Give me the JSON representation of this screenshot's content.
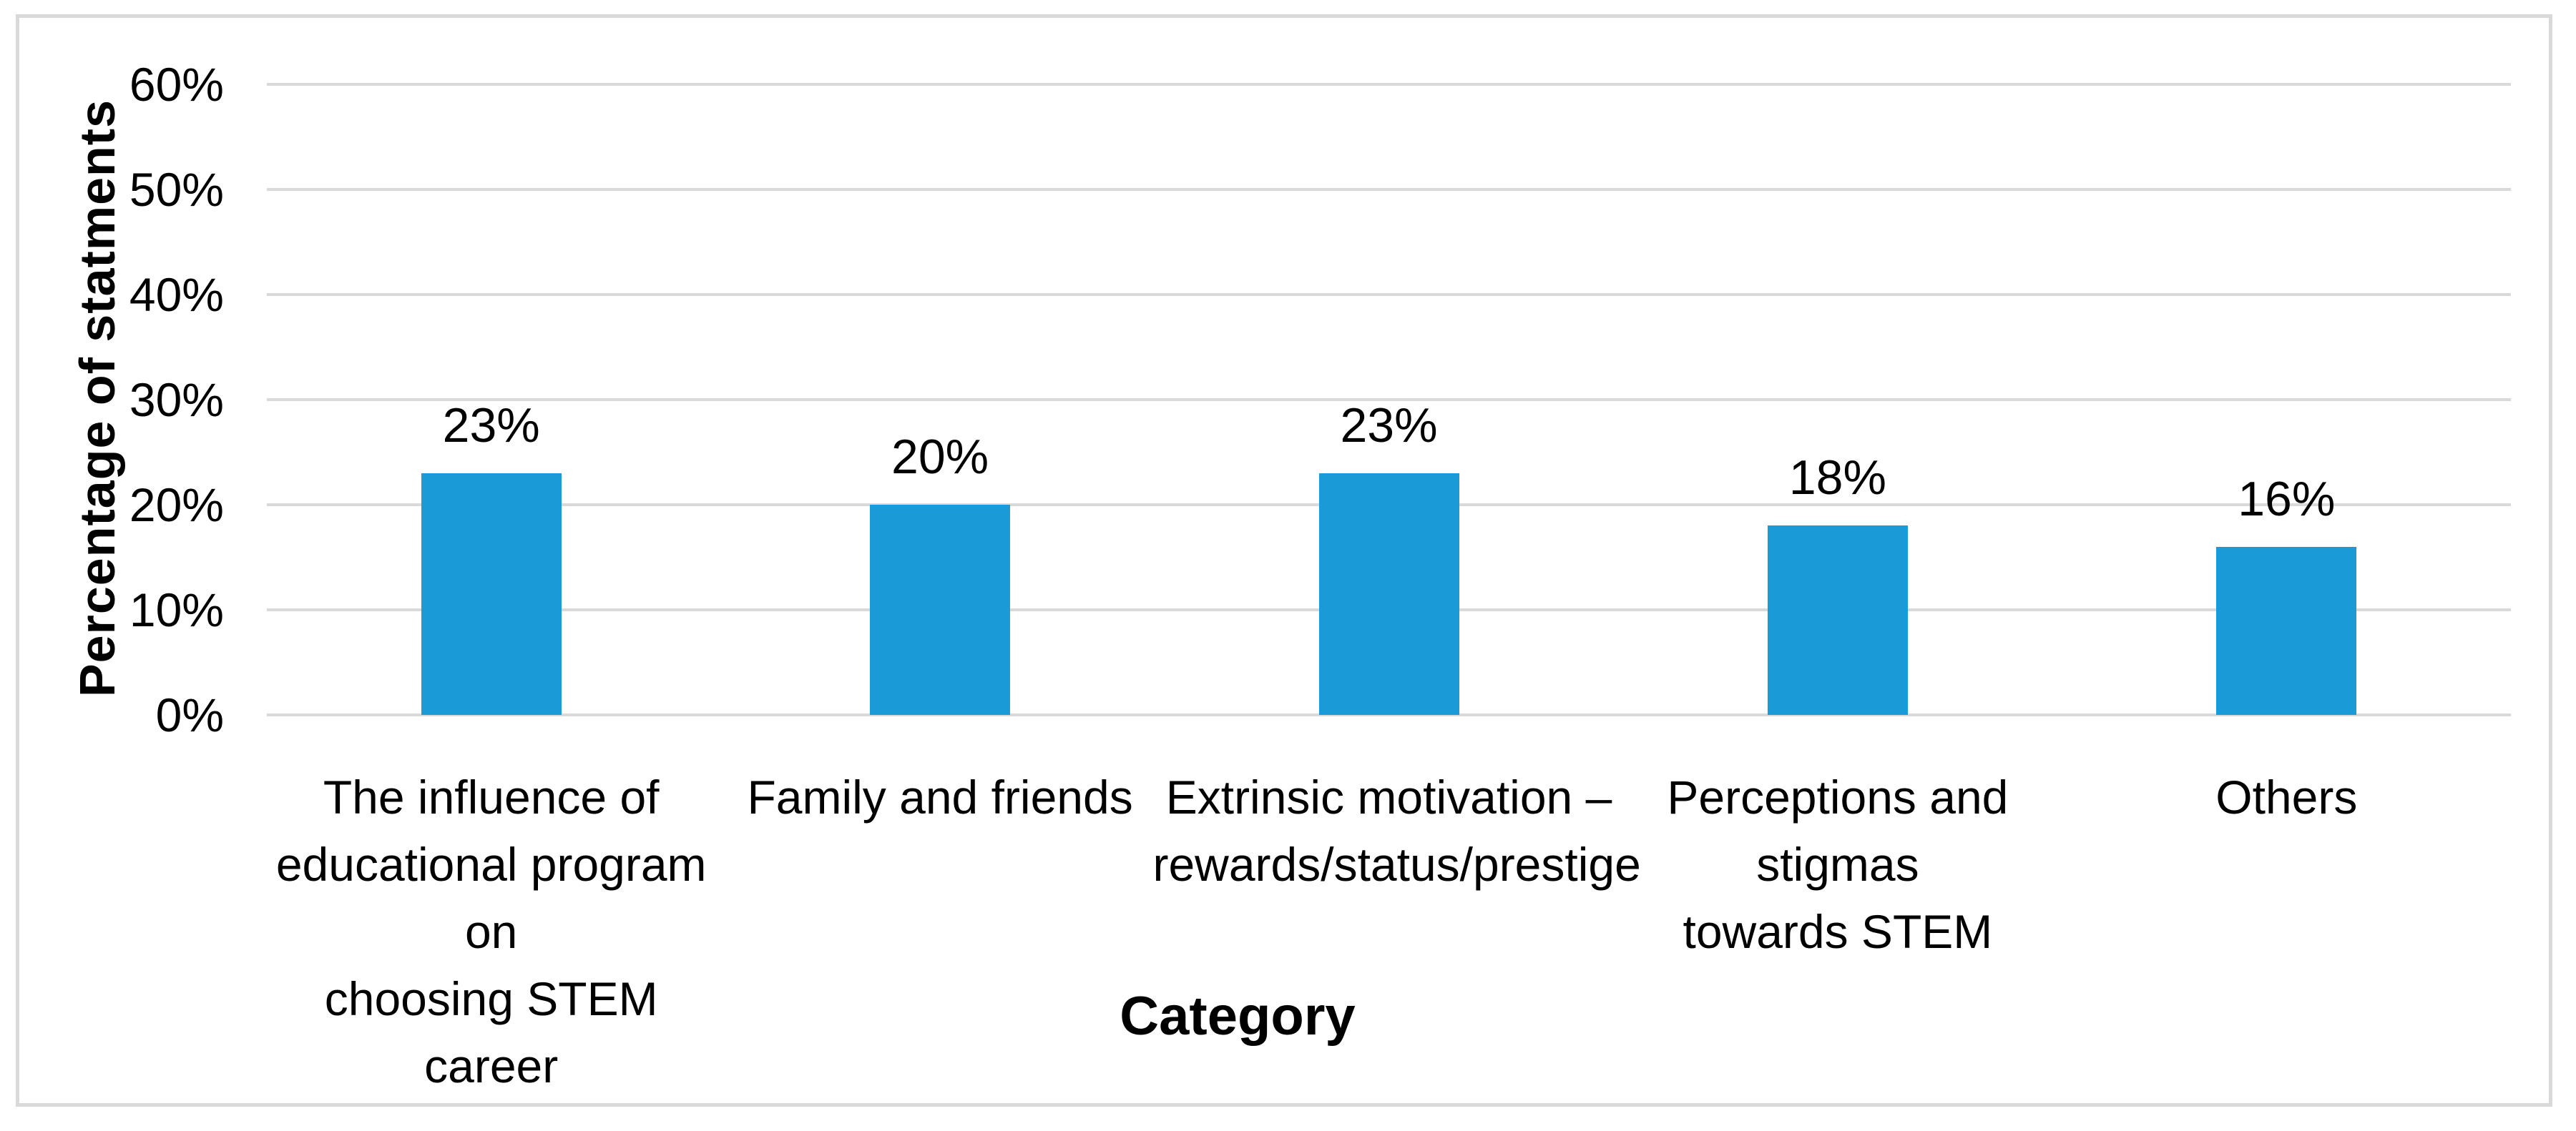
{
  "chart_data": {
    "type": "bar",
    "title": "",
    "xlabel": "Category",
    "ylabel": "Percentage of statments",
    "categories": [
      "The influence of\neducational program on\nchoosing STEM  career",
      "Family and friends",
      "Extrinsic motivation –\nrewards/status/prestige",
      "Perceptions and stigmas\ntowards STEM",
      "Others"
    ],
    "values": [
      23,
      20,
      23,
      18,
      16
    ],
    "data_labels": [
      "23%",
      "20%",
      "23%",
      "18%",
      "16%"
    ],
    "yticks": {
      "values": [
        0,
        10,
        20,
        30,
        40,
        50,
        60
      ],
      "labels": [
        "0%",
        "10%",
        "20%",
        "30%",
        "40%",
        "50%",
        "60%"
      ]
    },
    "ylim": [
      0,
      60
    ],
    "grid": "horizontal-major",
    "legend": "none",
    "colors": {
      "bar": "#1A9BD7",
      "gridline": "#D9D9D9",
      "frame_border": "#D9D9D9",
      "text": "#000000",
      "background": "#FFFFFF"
    }
  }
}
